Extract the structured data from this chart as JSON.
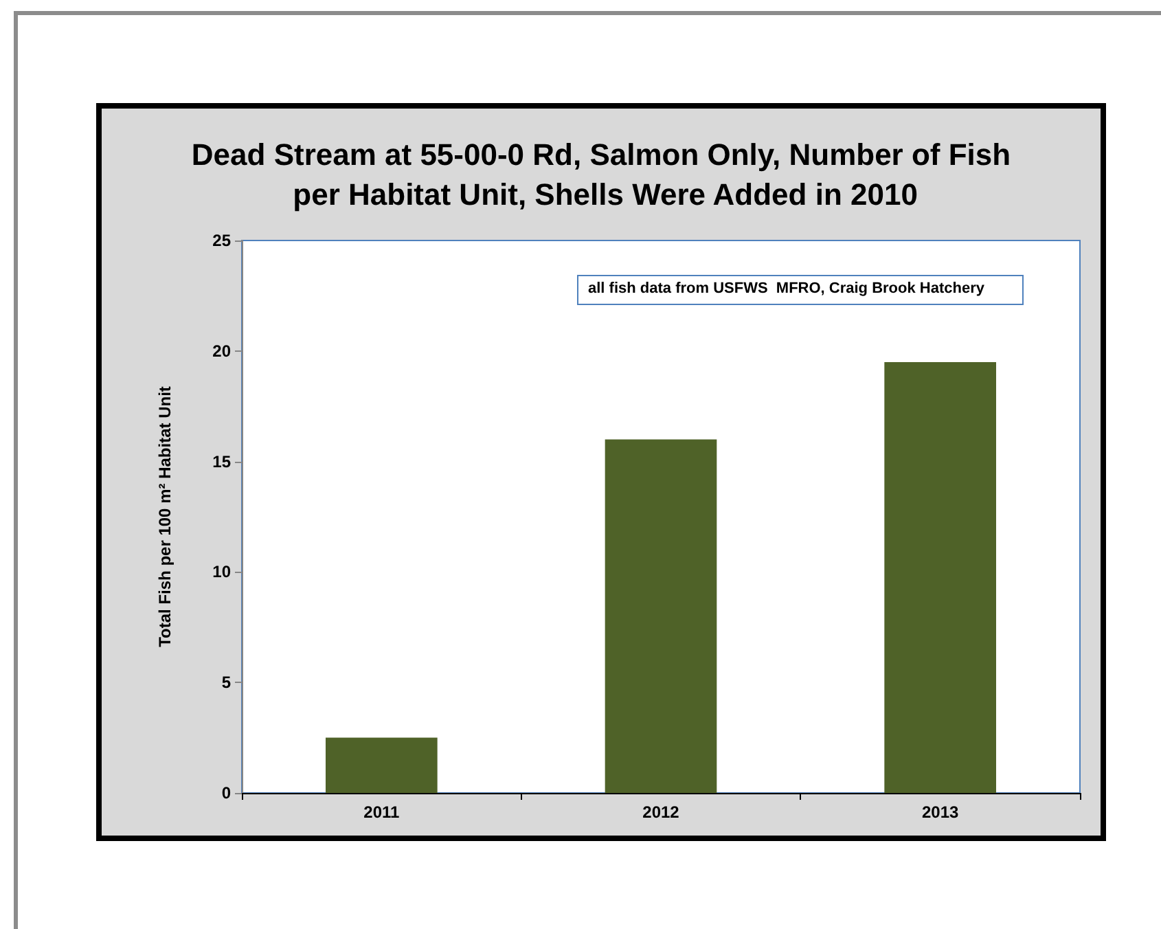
{
  "chart_data": {
    "type": "bar",
    "title": "Dead Stream at 55-00-0 Rd, Salmon Only, Number of Fish per Habitat Unit, Shells Were Added in 2010",
    "ylabel": "Total Fish per 100 m² Habitat Unit",
    "annotations": [
      "all fish data from USFWS  MFRO, Craig Brook Hatchery"
    ],
    "categories": [
      "2011",
      "2012",
      "2013"
    ],
    "values": [
      2.5,
      16,
      19.5
    ],
    "color": "#4f6228",
    "ylim": [
      0,
      25
    ],
    "yticks": [
      0,
      5,
      10,
      15,
      20,
      25
    ],
    "grid": false
  }
}
